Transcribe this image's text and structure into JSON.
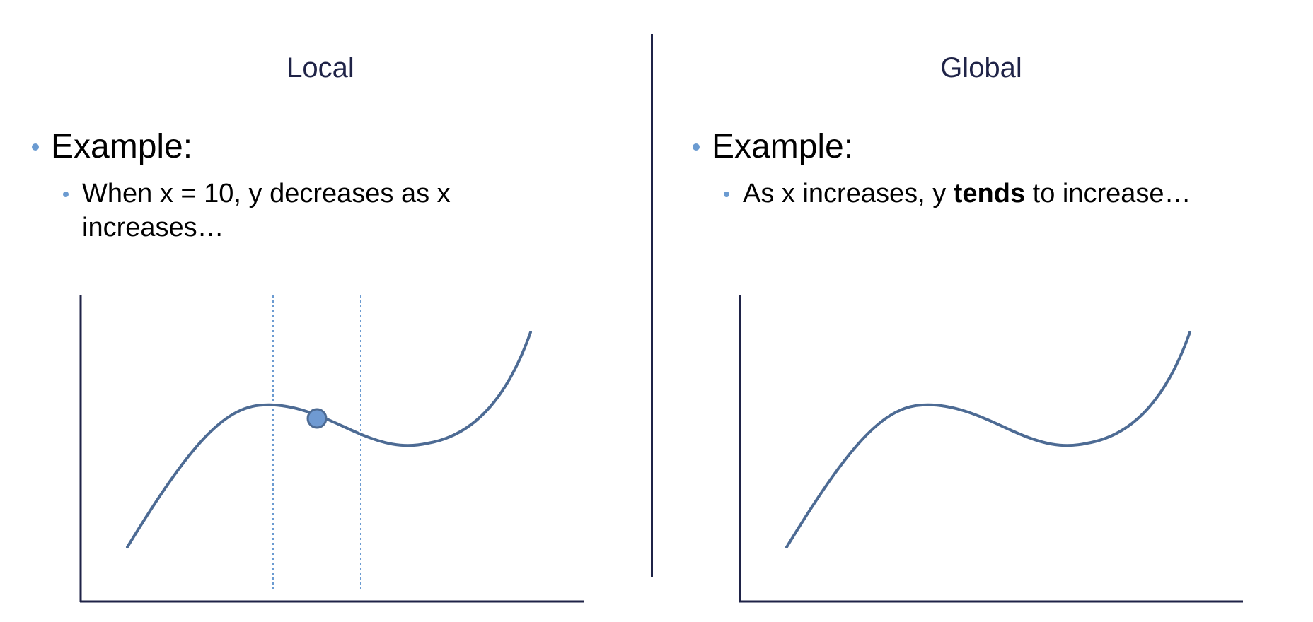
{
  "left_panel": {
    "title": "Local",
    "bullet1": "Example:",
    "bullet2": "When x = 10, y decreases as x increases…"
  },
  "right_panel": {
    "title": "Global",
    "bullet1": "Example:",
    "bullet2_before": "As x increases, y ",
    "bullet2_bold": "tends",
    "bullet2_after": " to increase…"
  },
  "colors": {
    "title_text": "#1f2347",
    "axis": "#1f2347",
    "curve": "#4d6b94",
    "bullet": "#6b9bd1",
    "point_fill": "#6f9ad2",
    "guide_line": "#6b9bd1"
  }
}
